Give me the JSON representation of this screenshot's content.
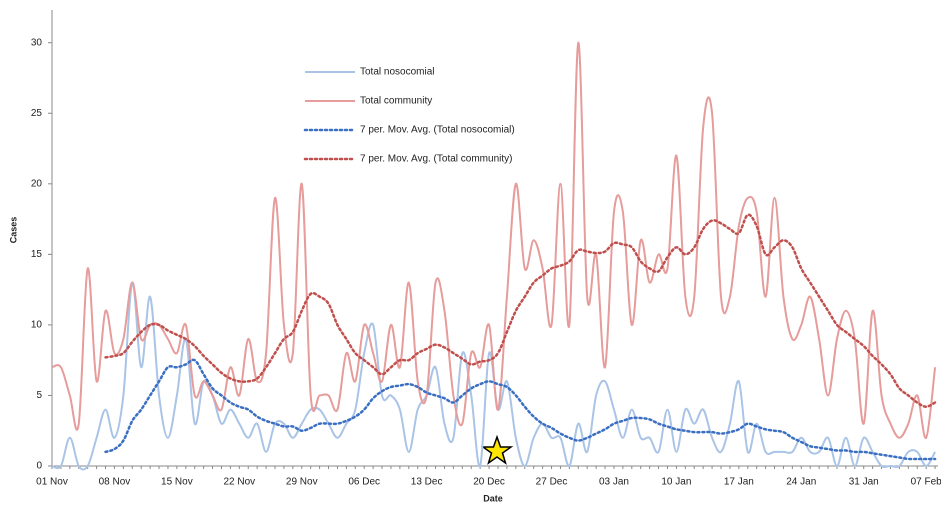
{
  "chart_data": {
    "type": "line",
    "x_label": "Date",
    "y_label": "Cases",
    "categories": [
      "01 Nov",
      null,
      null,
      null,
      null,
      null,
      null,
      "08 Nov",
      null,
      null,
      null,
      null,
      null,
      null,
      "15 Nov",
      null,
      null,
      null,
      null,
      null,
      null,
      "22 Nov",
      null,
      null,
      null,
      null,
      null,
      null,
      "29 Nov",
      null,
      null,
      null,
      null,
      null,
      null,
      "06 Dec",
      null,
      null,
      null,
      null,
      null,
      null,
      "13 Dec",
      null,
      null,
      null,
      null,
      null,
      null,
      "20 Dec",
      null,
      null,
      null,
      null,
      null,
      null,
      "27 Dec",
      null,
      null,
      null,
      null,
      null,
      null,
      "03 Jan",
      null,
      null,
      null,
      null,
      null,
      null,
      "10 Jan",
      null,
      null,
      null,
      null,
      null,
      null,
      "17 Jan",
      null,
      null,
      null,
      null,
      null,
      null,
      "24 Jan",
      null,
      null,
      null,
      null,
      null,
      null,
      "31 Jan",
      null,
      null,
      null,
      null,
      null,
      null,
      "07 Feb",
      null
    ],
    "ylim": [
      0,
      32
    ],
    "yticks": [
      0,
      5,
      10,
      15,
      20,
      25,
      30
    ],
    "series": [
      {
        "name": "Total nosocomial",
        "color": "#a9c4e6",
        "style": "solid",
        "values": [
          0,
          0,
          2,
          0,
          0,
          2,
          4,
          2,
          5,
          13,
          7,
          12,
          5,
          2,
          5,
          9,
          3,
          6,
          5,
          3,
          4,
          3,
          2,
          3,
          1,
          3,
          3,
          2,
          3,
          4,
          4,
          3,
          2,
          3,
          4,
          8,
          10,
          5,
          5,
          4,
          1,
          4,
          5,
          7,
          3,
          2,
          8,
          5,
          0,
          8,
          4,
          6,
          2,
          0,
          2,
          3,
          2,
          2,
          0,
          3,
          1,
          5,
          6,
          4,
          2,
          4,
          2,
          2,
          1,
          4,
          1,
          4,
          3,
          4,
          2,
          1,
          3,
          6,
          1,
          3,
          1,
          1,
          1,
          1,
          2,
          1,
          1,
          2,
          0,
          2,
          0,
          2,
          1,
          0,
          0,
          0,
          1,
          1,
          0,
          1
        ]
      },
      {
        "name": "Total community",
        "color": "#e59c9a",
        "style": "solid",
        "values": [
          7,
          7,
          5,
          3,
          14,
          6,
          11,
          8,
          9,
          13,
          9,
          10,
          10,
          9,
          8,
          10,
          5,
          6,
          5,
          4,
          7,
          5,
          9,
          6,
          8,
          19,
          10,
          8,
          20,
          5,
          5,
          5,
          4,
          8,
          6,
          10,
          8,
          6,
          10,
          7,
          13,
          6,
          5,
          13,
          11,
          5,
          3,
          8,
          7,
          10,
          4,
          12,
          20,
          14,
          16,
          14,
          10,
          20,
          10,
          30,
          12,
          15,
          7,
          18,
          18,
          10,
          16,
          13,
          15,
          14,
          22,
          12,
          12,
          24,
          25,
          12,
          12,
          17,
          19,
          18,
          12,
          19,
          12,
          9,
          10,
          12,
          9,
          5,
          9,
          11,
          9,
          3,
          11,
          5,
          3,
          2,
          3,
          5,
          2,
          7
        ]
      },
      {
        "name": "7 per. Mov. Avg. (Total nosocomial)",
        "color": "#3b6fc2",
        "style": "dotted",
        "values": [
          null,
          null,
          null,
          null,
          null,
          null,
          1,
          1.2,
          1.8,
          3.2,
          4,
          5,
          6,
          7,
          7,
          7.2,
          7.5,
          6.5,
          5.5,
          5,
          4.5,
          4.2,
          4,
          3.5,
          3.2,
          3,
          2.8,
          2.8,
          2.5,
          2.7,
          3,
          3,
          3,
          3.2,
          3.5,
          4,
          4.8,
          5.3,
          5.6,
          5.7,
          5.8,
          5.6,
          5.2,
          5,
          4.8,
          4.5,
          5,
          5.5,
          5.8,
          6,
          5.8,
          5.6,
          5,
          4.2,
          3.5,
          3,
          2.7,
          2.3,
          2,
          1.8,
          2,
          2.3,
          2.6,
          3,
          3.2,
          3.4,
          3.4,
          3.3,
          3,
          2.8,
          2.6,
          2.5,
          2.4,
          2.4,
          2.4,
          2.3,
          2.4,
          2.6,
          3,
          2.8,
          2.6,
          2.5,
          2.4,
          2,
          1.7,
          1.4,
          1.3,
          1.2,
          1.1,
          1.1,
          1,
          1,
          0.9,
          0.8,
          0.7,
          0.6,
          0.5,
          0.5,
          0.5,
          0.5
        ]
      },
      {
        "name": "7 per. Mov. Avg. (Total community)",
        "color": "#c0504d",
        "style": "dotted",
        "values": [
          null,
          null,
          null,
          null,
          null,
          null,
          7.7,
          7.8,
          8,
          8.8,
          9.5,
          10,
          10,
          9.6,
          9.3,
          9,
          8.5,
          7.8,
          7.2,
          6.6,
          6.2,
          6,
          6,
          6.2,
          7,
          8,
          9,
          9.5,
          11,
          12.2,
          12,
          11.5,
          10,
          9,
          8,
          7.5,
          7,
          6.5,
          7,
          7.5,
          7.5,
          8,
          8.3,
          8.6,
          8.4,
          8,
          7.6,
          7.2,
          7.4,
          7.5,
          8,
          9.5,
          11,
          12,
          13,
          13.5,
          14,
          14.2,
          14.5,
          15.3,
          15.2,
          15.1,
          15.2,
          15.8,
          15.7,
          15.5,
          14.5,
          14,
          13.8,
          14.8,
          15.5,
          15,
          15.5,
          16.8,
          17.4,
          17.2,
          16.8,
          16.5,
          17.8,
          17,
          15,
          15.5,
          16,
          15.5,
          14,
          13,
          12,
          11,
          10,
          9.5,
          9,
          8.5,
          7.8,
          7.2,
          6.5,
          5.5,
          5,
          4.5,
          4.2,
          4.5
        ]
      }
    ]
  }
}
